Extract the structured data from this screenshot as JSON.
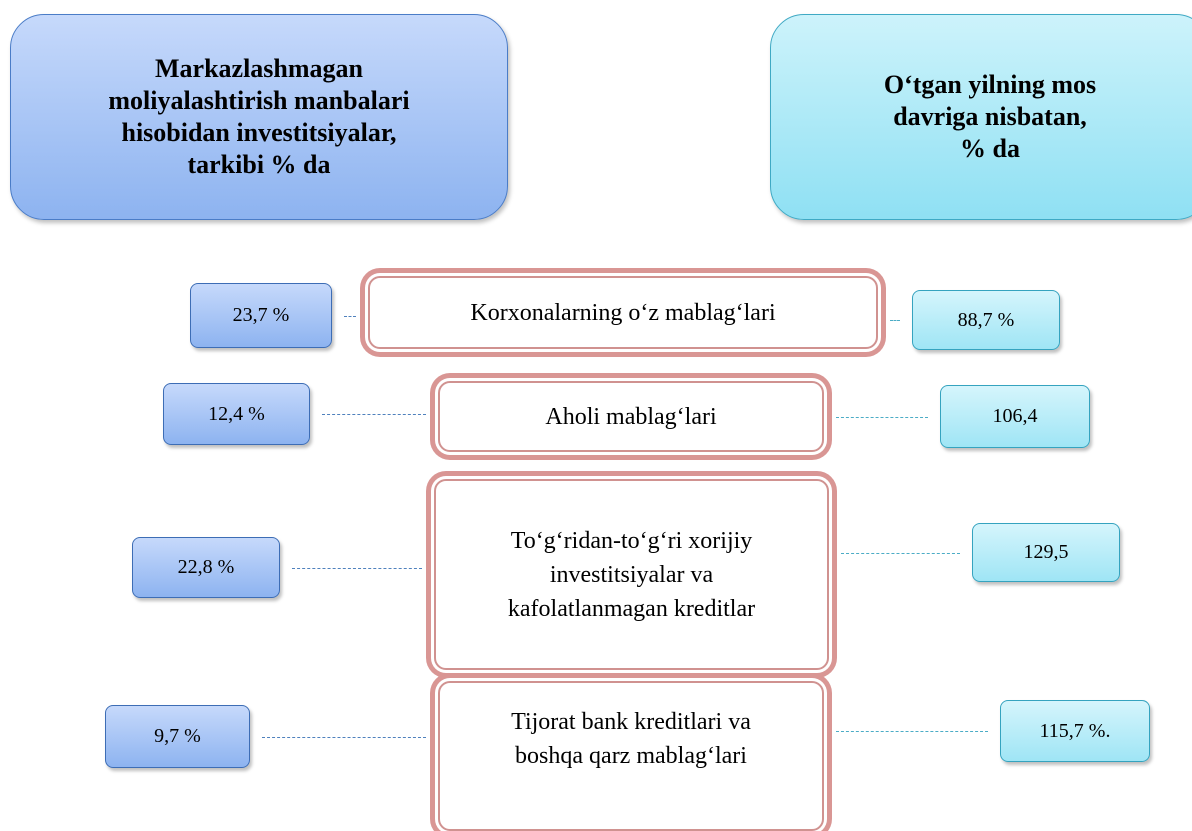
{
  "headers": {
    "left": [
      "Markazlashmagan",
      "moliyalashtirish manbalari",
      "hisobidan investitsiyalar,",
      "tarkibi % da"
    ],
    "right": [
      "O‘tgan yilning mos",
      "davriga nisbatan,",
      "% da"
    ]
  },
  "rows": [
    {
      "left": "23,7 %",
      "label": [
        "Korxonalarning o‘z mablag‘lari"
      ],
      "right": "88,7 %"
    },
    {
      "left": "12,4 %",
      "label": [
        "Aholi mablag‘lari"
      ],
      "right": "106,4"
    },
    {
      "left": "22,8 %",
      "label": [
        "To‘g‘ridan-to‘g‘ri xorijiy",
        "investitsiyalar va",
        "kafolatlanmagan kreditlar"
      ],
      "right": "129,5"
    },
    {
      "left": "9,7 %",
      "label": [
        "Tijorat bank kreditlari va",
        "boshqa qarz mablag‘lari",
        ""
      ],
      "right": "115,7 %."
    }
  ]
}
